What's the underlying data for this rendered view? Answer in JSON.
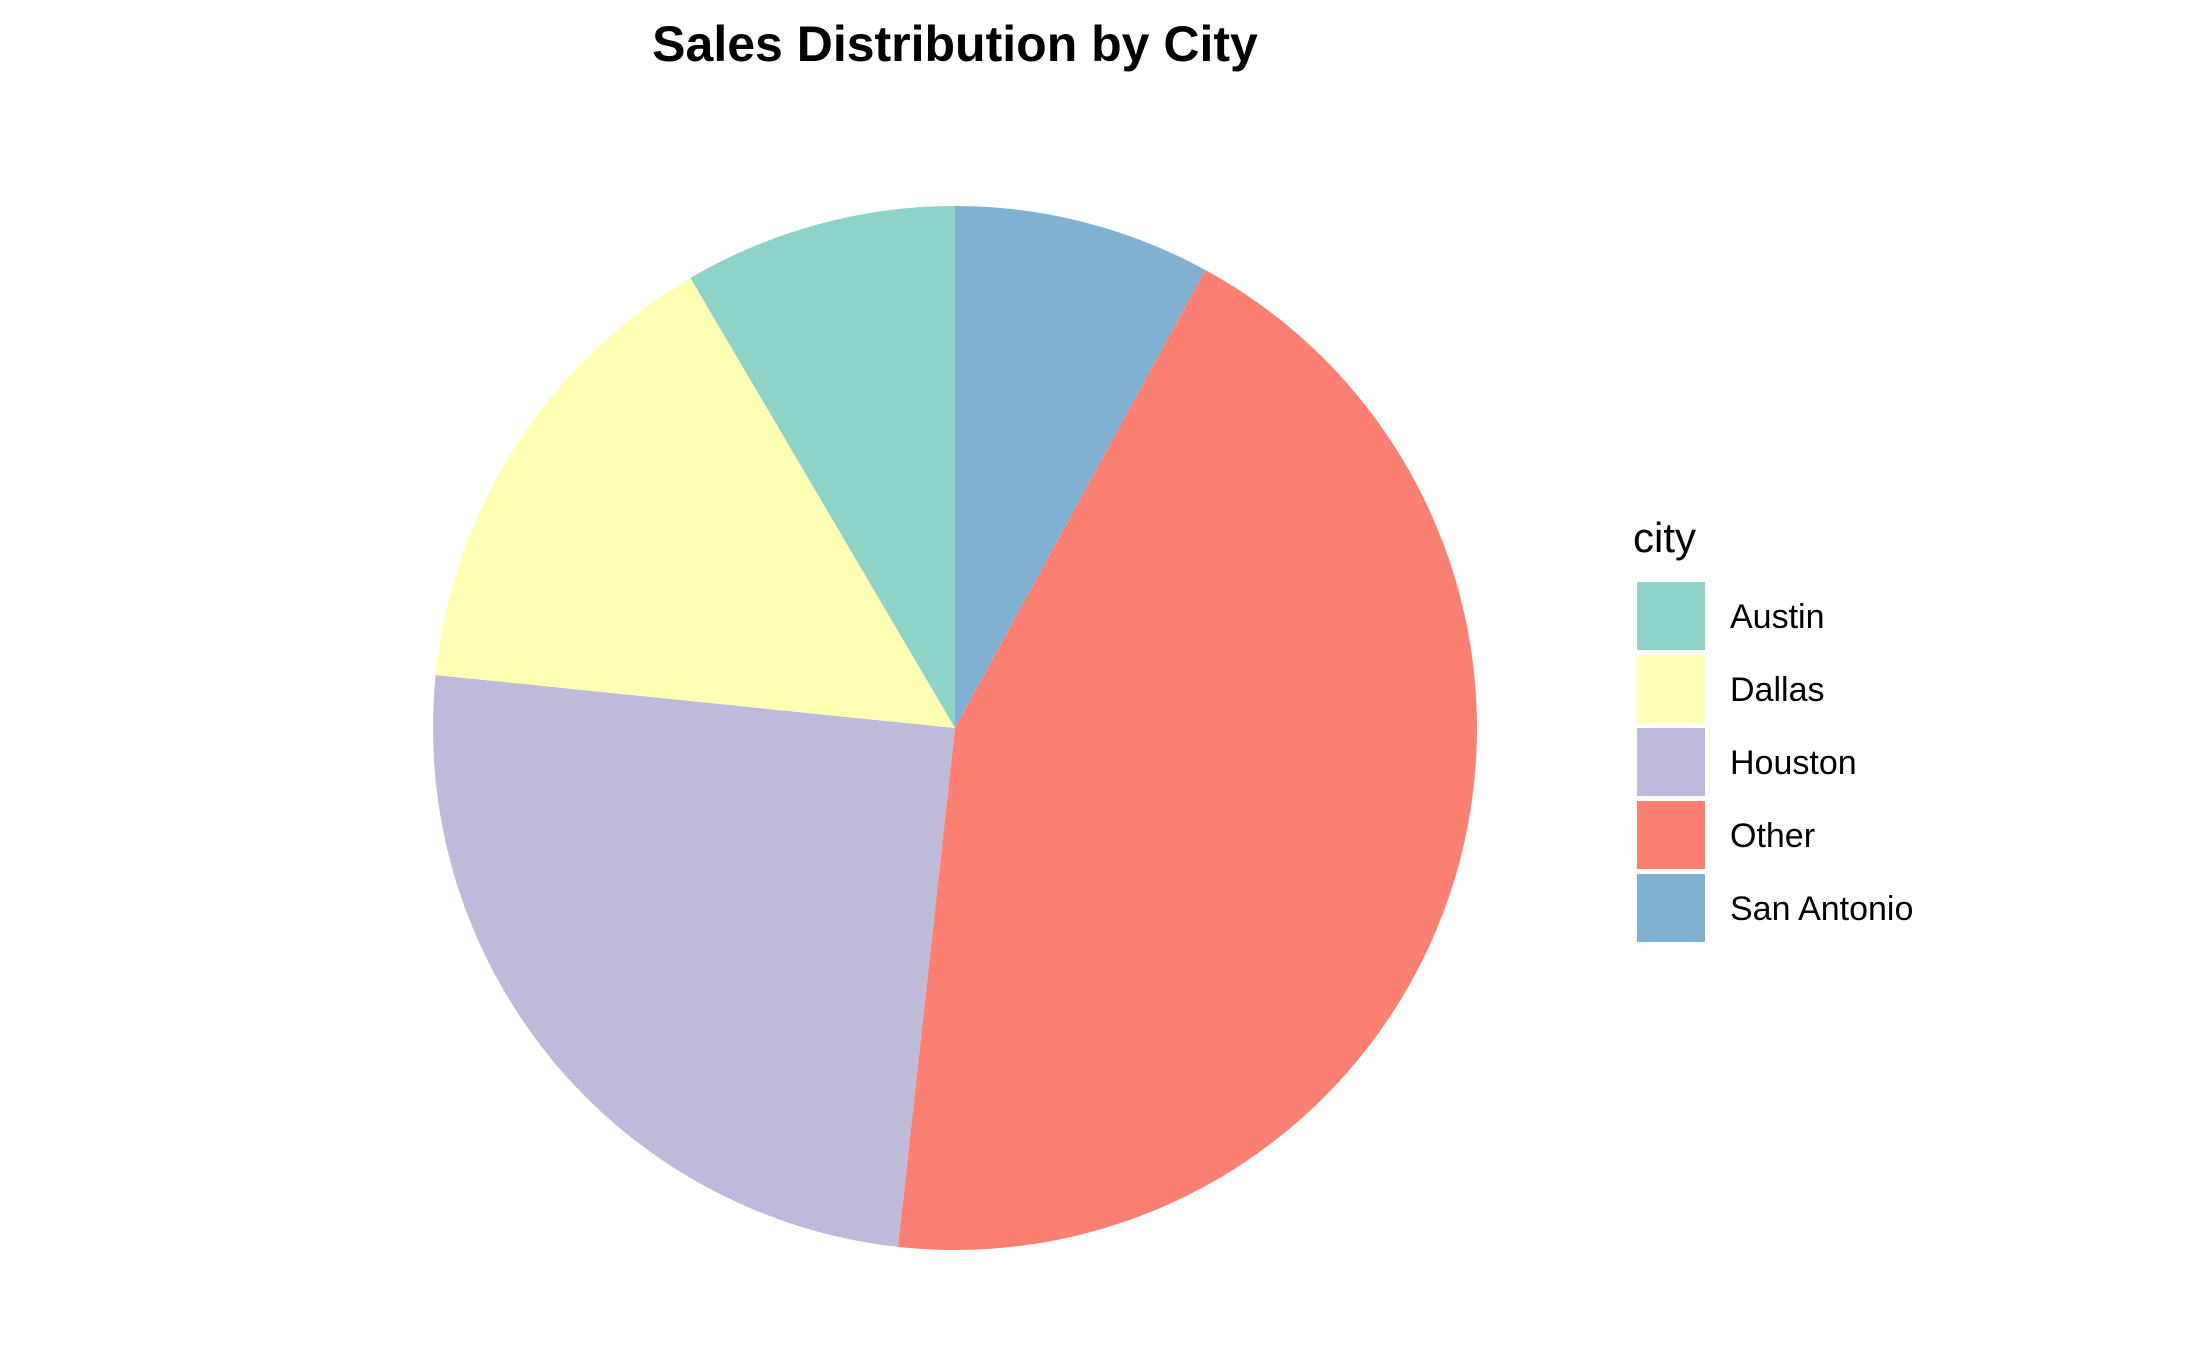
{
  "chart_data": {
    "type": "pie",
    "title": "Sales Distribution by City",
    "legend": {
      "title": "city",
      "placement": "right"
    },
    "slices": [
      {
        "label": "San Antonio",
        "value": 8,
        "color": "#80B1D3"
      },
      {
        "label": "Other",
        "value": 44,
        "color": "#FB8072"
      },
      {
        "label": "Houston",
        "value": 25,
        "color": "#BEBADA"
      },
      {
        "label": "Dallas",
        "value": 15,
        "color": "#FFFFB3"
      },
      {
        "label": "Austin",
        "value": 8.5,
        "color": "#8DD3C7"
      }
    ],
    "legend_order": [
      "Austin",
      "Dallas",
      "Houston",
      "Other",
      "San Antonio"
    ],
    "start": "12 o'clock",
    "direction": "clockwise"
  }
}
